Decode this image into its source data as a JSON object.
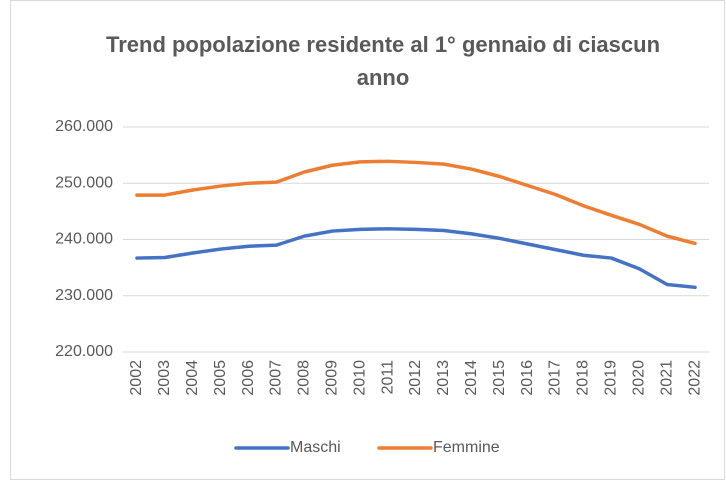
{
  "chart_data": {
    "type": "line",
    "title": "Trend popolazione residente al 1° gennaio di ciascun anno",
    "categories": [
      "2002",
      "2003",
      "2004",
      "2005",
      "2006",
      "2007",
      "2008",
      "2009",
      "2010",
      "2011",
      "2012",
      "2013",
      "2014",
      "2015",
      "2016",
      "2017",
      "2018",
      "2019",
      "2020",
      "2021",
      "2022"
    ],
    "series": [
      {
        "name": "Maschi",
        "color": "#4472c4",
        "values": [
          236700,
          236800,
          237600,
          238300,
          238800,
          239000,
          240600,
          241500,
          241800,
          241900,
          241800,
          241600,
          241000,
          240200,
          239200,
          238200,
          237200,
          236700,
          234800,
          232000,
          231500
        ]
      },
      {
        "name": "Femmine",
        "color": "#ed7d31",
        "values": [
          247900,
          247900,
          248800,
          249500,
          250000,
          250200,
          252000,
          253200,
          253800,
          253900,
          253700,
          253400,
          252500,
          251200,
          249600,
          248000,
          246000,
          244300,
          242700,
          240600,
          239300
        ]
      }
    ],
    "ylim": [
      220000,
      260000
    ],
    "yticks": [
      {
        "value": 220000,
        "label": "220.000"
      },
      {
        "value": 230000,
        "label": "230.000"
      },
      {
        "value": 240000,
        "label": "240.000"
      },
      {
        "value": 250000,
        "label": "250.000"
      },
      {
        "value": 260000,
        "label": "260.000"
      }
    ],
    "grid": true,
    "legend": "bottom"
  }
}
